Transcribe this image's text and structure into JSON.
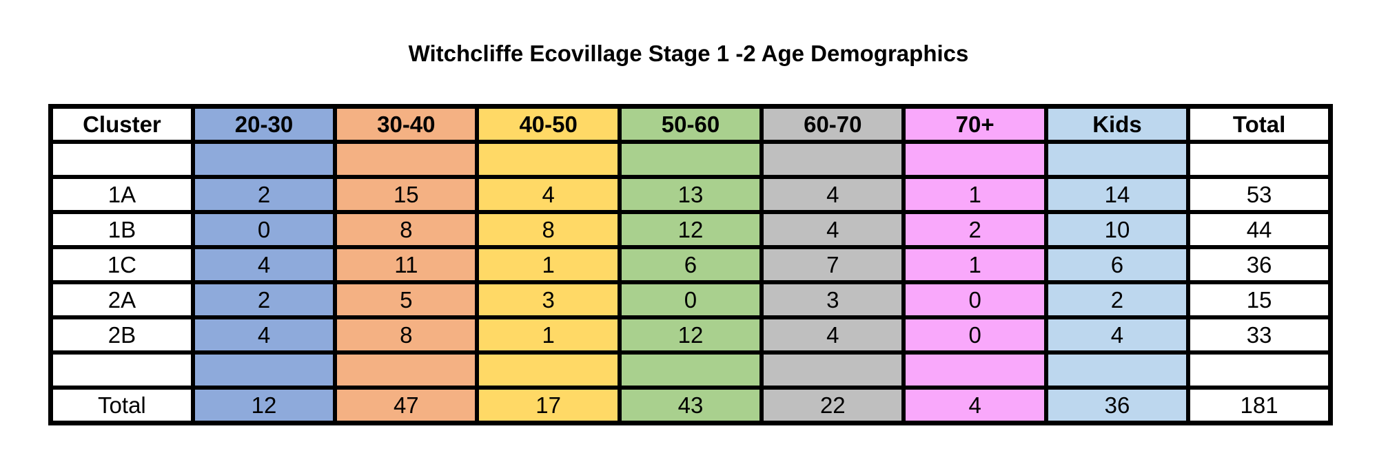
{
  "title": "Witchcliffe Ecovillage Stage 1 -2 Age Demographics",
  "colors": {
    "20-30": "#8eaadb",
    "30-40": "#f4b183",
    "40-50": "#ffd966",
    "50-60": "#a9d08e",
    "60-70": "#bfbfbf",
    "70+": "#f9a8fb",
    "Kids": "#bdd7ee",
    "Cluster": "#ffffff",
    "Total": "#ffffff"
  },
  "table": {
    "headers": [
      "Cluster",
      "20-30",
      "30-40",
      "40-50",
      "50-60",
      "60-70",
      "70+",
      "Kids",
      "Total"
    ],
    "rows": [
      [
        "",
        "",
        "",
        "",
        "",
        "",
        "",
        "",
        ""
      ],
      [
        "1A",
        "2",
        "15",
        "4",
        "13",
        "4",
        "1",
        "14",
        "53"
      ],
      [
        "1B",
        "0",
        "8",
        "8",
        "12",
        "4",
        "2",
        "10",
        "44"
      ],
      [
        "1C",
        "4",
        "11",
        "1",
        "6",
        "7",
        "1",
        "6",
        "36"
      ],
      [
        "2A",
        "2",
        "5",
        "3",
        "0",
        "3",
        "0",
        "2",
        "15"
      ],
      [
        "2B",
        "4",
        "8",
        "1",
        "12",
        "4",
        "0",
        "4",
        "33"
      ],
      [
        "",
        "",
        "",
        "",
        "",
        "",
        "",
        "",
        ""
      ],
      [
        "Total",
        "12",
        "47",
        "17",
        "43",
        "22",
        "4",
        "36",
        "181"
      ]
    ]
  }
}
